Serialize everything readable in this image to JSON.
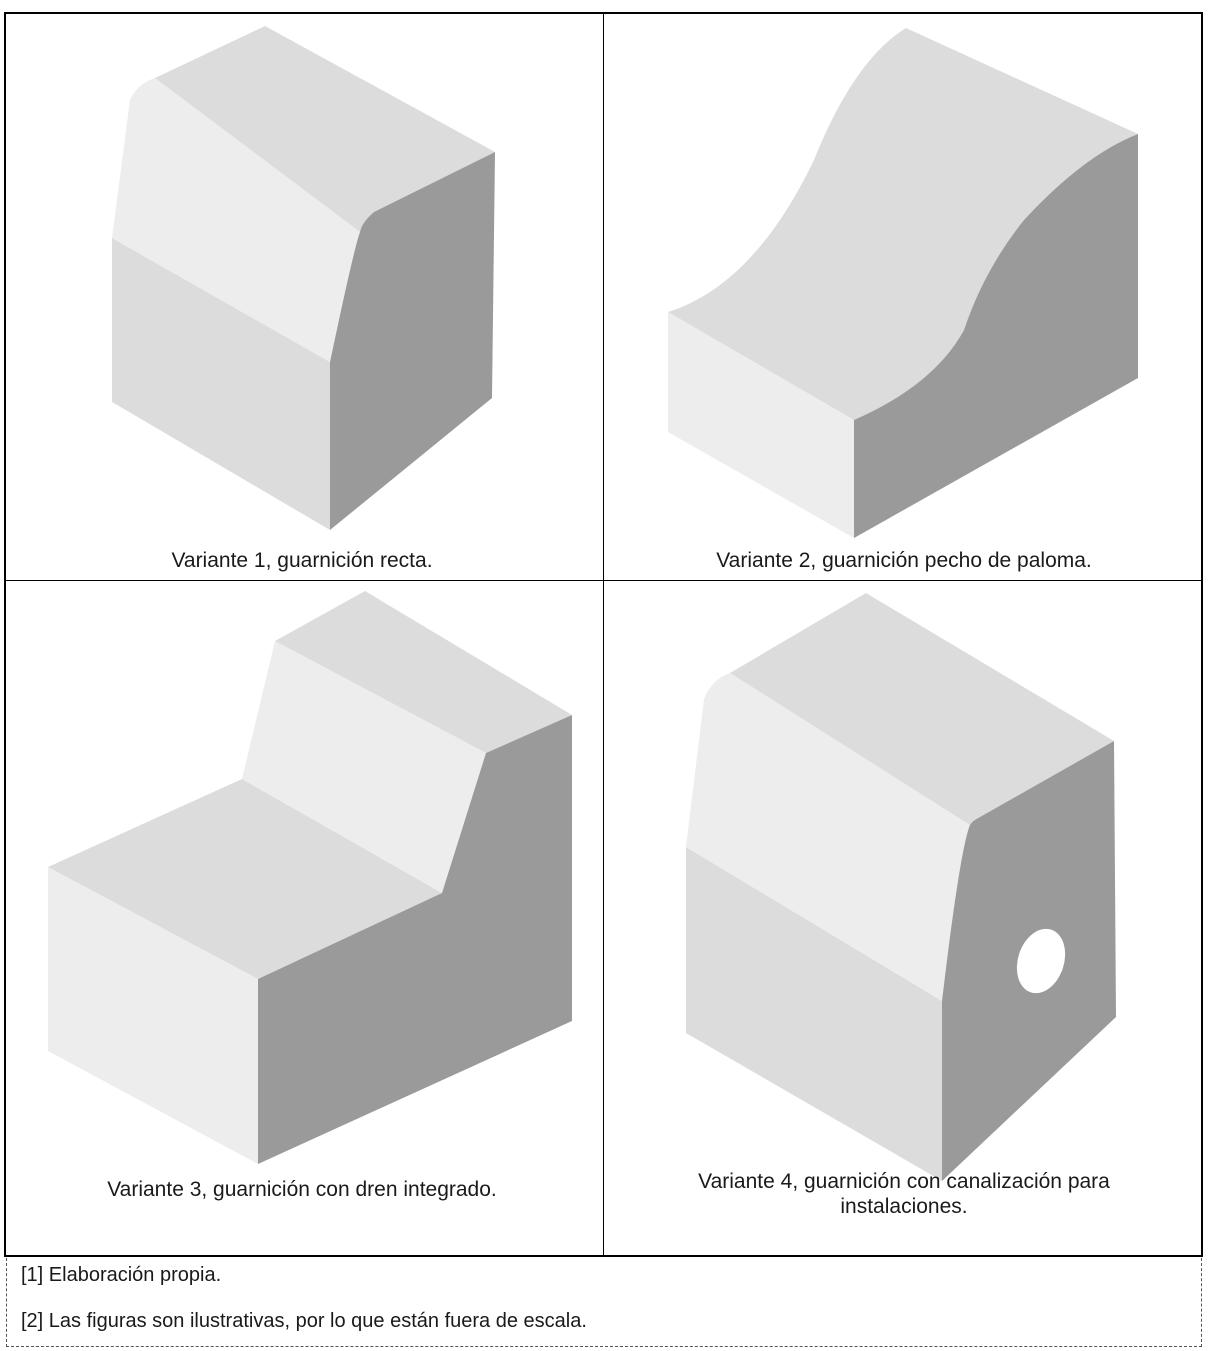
{
  "figures": [
    {
      "caption": "Variante 1, guarnición recta."
    },
    {
      "caption": "Variante 2, guarnición pecho de paloma."
    },
    {
      "caption": "Variante 3, guarnición con dren integrado."
    },
    {
      "caption": "Variante 4, guarnición con canalización para instalaciones."
    }
  ],
  "notes": [
    "[1] Elaboración propia.",
    "[2] Las figuras son ilustrativas, por lo que están fuera de escala."
  ],
  "colors": {
    "dark_face": "#9a9a9b",
    "mid_face": "#dcdcdc",
    "light_face": "#ededed",
    "border": "#000000"
  }
}
